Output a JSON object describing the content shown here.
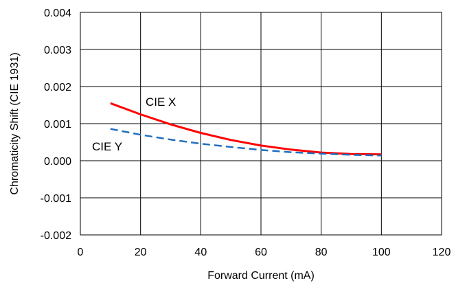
{
  "chart_data": {
    "type": "line",
    "title": "",
    "xlabel": "Forward Current (mA)",
    "ylabel": "Chromaticity Shift (CIE 1931)",
    "xlim": [
      0,
      120
    ],
    "ylim": [
      -0.002,
      0.004
    ],
    "xticks": [
      0,
      20,
      40,
      60,
      80,
      100,
      120
    ],
    "yticks": [
      -0.002,
      -0.001,
      0.0,
      0.001,
      0.002,
      0.003,
      0.004
    ],
    "xtick_labels": [
      "0",
      "20",
      "40",
      "60",
      "80",
      "100",
      "120"
    ],
    "ytick_labels": [
      "-0.002",
      "-0.001",
      "0.000",
      "0.001",
      "0.002",
      "0.003",
      "0.004"
    ],
    "grid": true,
    "series": [
      {
        "name": "CIE X",
        "color": "#ff0000",
        "style": "solid",
        "x": [
          10,
          20,
          30,
          40,
          50,
          60,
          70,
          80,
          90,
          100
        ],
        "values": [
          0.00155,
          0.00125,
          0.00098,
          0.00075,
          0.00056,
          0.00041,
          0.0003,
          0.00022,
          0.00018,
          0.00017
        ]
      },
      {
        "name": "CIE Y",
        "color": "#1f6fc0",
        "style": "dashed",
        "x": [
          10,
          20,
          30,
          40,
          50,
          60,
          70,
          80,
          90,
          100
        ],
        "values": [
          0.00086,
          0.0007,
          0.00057,
          0.00046,
          0.00037,
          0.00029,
          0.00023,
          0.00019,
          0.00016,
          0.00014
        ]
      }
    ]
  }
}
